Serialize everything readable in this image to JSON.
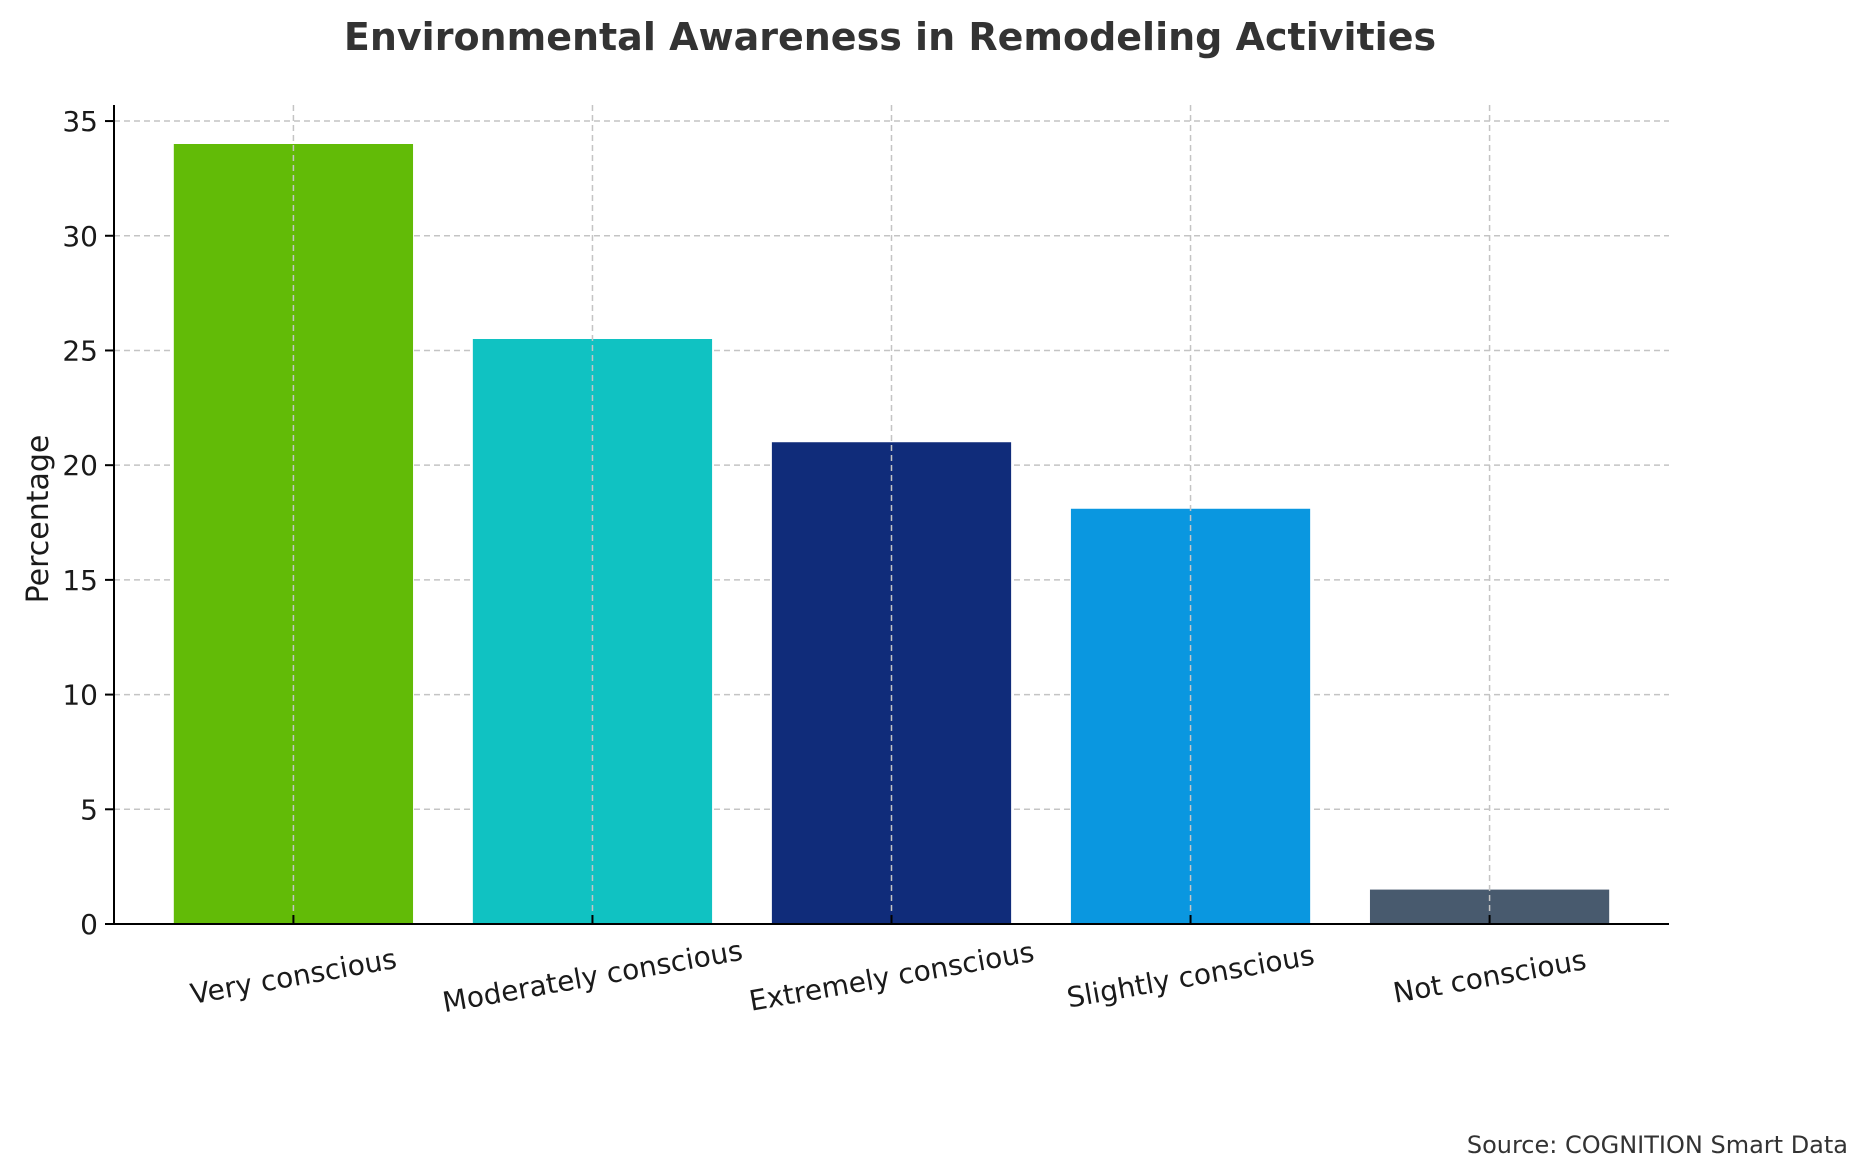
{
  "chart_data": {
    "type": "bar",
    "title": "Environmental Awareness in Remodeling Activities",
    "xlabel": "",
    "ylabel": "Percentage",
    "categories": [
      "Very conscious",
      "Moderately conscious",
      "Extremely conscious",
      "Slightly conscious",
      "Not conscious"
    ],
    "values": [
      34.0,
      25.5,
      21.0,
      18.1,
      1.5
    ],
    "colors": [
      "#62bb07",
      "#10c2c2",
      "#102c7a",
      "#0a97e0",
      "#485a6e"
    ],
    "ylim": [
      0,
      35.7
    ],
    "yticks": [
      0,
      5,
      10,
      15,
      20,
      25,
      30,
      35
    ],
    "grid": true,
    "source": "Source: COGNITION Smart Data"
  }
}
